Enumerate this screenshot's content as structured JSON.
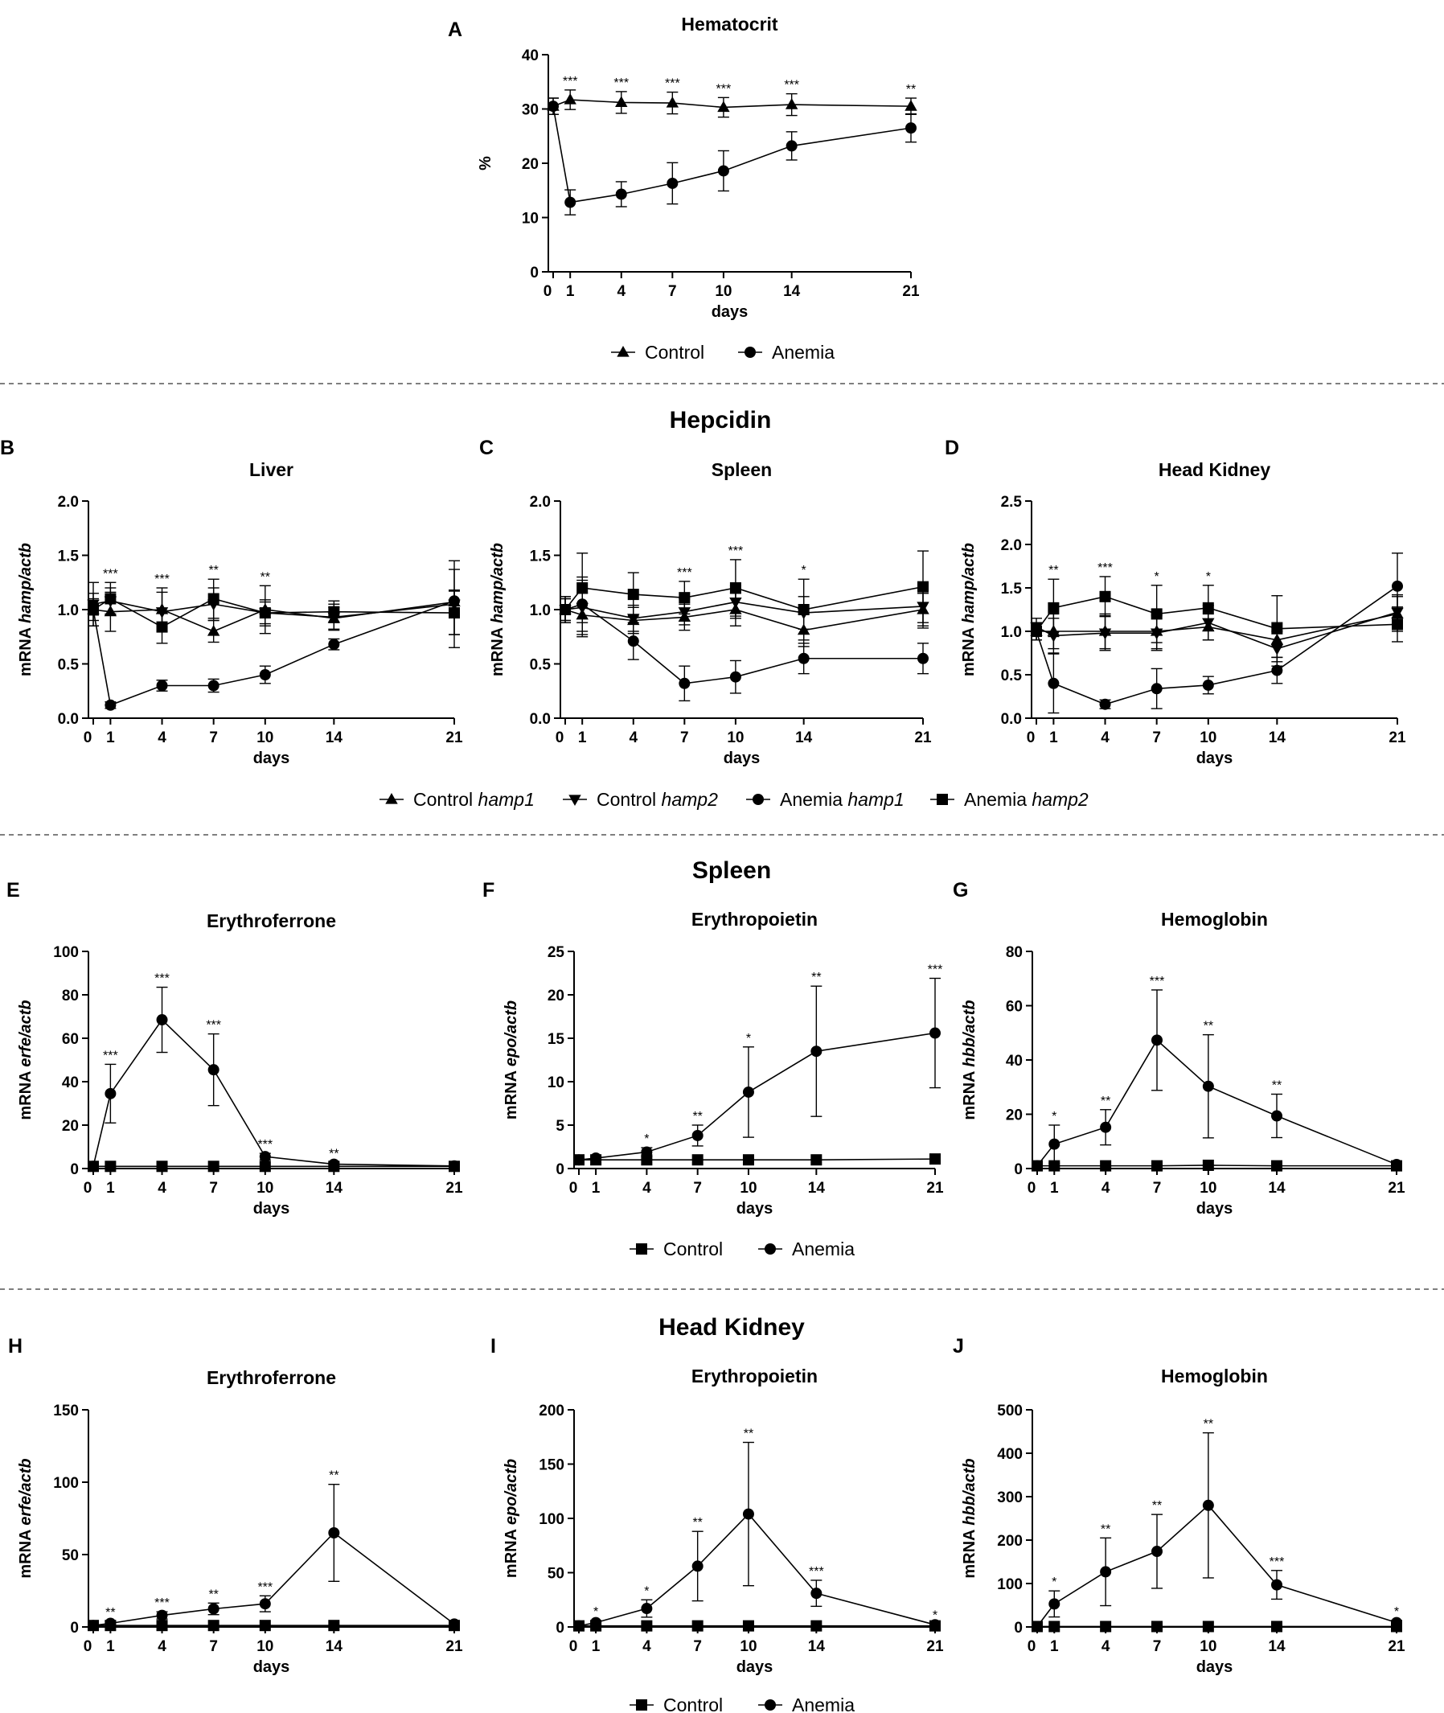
{
  "figure": {
    "sections": {
      "hepcidin": "Hepcidin",
      "spleen": "Spleen",
      "head_kidney": "Head Kidney"
    }
  },
  "legends": {
    "control_anemia_triangle": [
      "Control",
      "Anemia"
    ],
    "control_anemia_square": [
      "Control",
      "Anemia"
    ],
    "hepcidin": [
      {
        "prefix": "Control ",
        "gene": "hamp1"
      },
      {
        "prefix": "Control ",
        "gene": "hamp2"
      },
      {
        "prefix": "Anemia ",
        "gene": "hamp1"
      },
      {
        "prefix": "Anemia ",
        "gene": "hamp2"
      }
    ]
  },
  "chart_data": [
    {
      "id": "A",
      "letter": "A",
      "type": "line",
      "title": "Hematocrit",
      "xlabel": "days",
      "ylabel": "%",
      "ylabel_gene": "",
      "x": [
        0,
        1,
        4,
        7,
        10,
        14,
        21
      ],
      "xlim": [
        0,
        21
      ],
      "ylim": [
        0,
        40
      ],
      "yticks": [
        0,
        10,
        20,
        30,
        40
      ],
      "series": [
        {
          "name": "Control",
          "marker": "triangle",
          "values": [
            30.5,
            31.7,
            31.2,
            31.1,
            30.3,
            30.8,
            30.5
          ],
          "errors": [
            1.5,
            1.8,
            2.0,
            2.0,
            1.8,
            2.0,
            1.5
          ]
        },
        {
          "name": "Anemia",
          "marker": "circle",
          "values": [
            30.5,
            12.8,
            14.3,
            16.3,
            18.6,
            23.2,
            26.5
          ],
          "errors": [
            1.5,
            2.3,
            2.3,
            3.8,
            3.7,
            2.6,
            2.6
          ]
        }
      ],
      "significance": [
        {
          "x": 1,
          "text": "***"
        },
        {
          "x": 4,
          "text": "***"
        },
        {
          "x": 7,
          "text": "***"
        },
        {
          "x": 10,
          "text": "***"
        },
        {
          "x": 14,
          "text": "***"
        },
        {
          "x": 21,
          "text": "**"
        }
      ]
    },
    {
      "id": "B",
      "letter": "B",
      "type": "line",
      "title": "Liver",
      "xlabel": "days",
      "ylabel": "mRNA ",
      "ylabel_gene": "hamp/actb",
      "x": [
        0,
        1,
        4,
        7,
        10,
        14,
        21
      ],
      "xlim": [
        0,
        21
      ],
      "ylim": [
        0,
        2
      ],
      "yticks": [
        0.0,
        0.5,
        1.0,
        1.5,
        2.0
      ],
      "series": [
        {
          "name": "Control hamp1",
          "marker": "triangle",
          "values": [
            1.0,
            0.98,
            1.0,
            0.8,
            1.0,
            0.92,
            1.07
          ],
          "errors": [
            0.15,
            0.18,
            0.2,
            0.1,
            0.22,
            0.1,
            0.3
          ]
        },
        {
          "name": "Control hamp2",
          "marker": "triangle-down",
          "values": [
            1.05,
            1.08,
            0.98,
            1.05,
            0.97,
            0.93,
            1.05
          ],
          "errors": [
            0.2,
            0.12,
            0.18,
            0.15,
            0.12,
            0.12,
            0.4
          ]
        },
        {
          "name": "Anemia hamp1",
          "marker": "circle",
          "values": [
            1.0,
            0.12,
            0.3,
            0.3,
            0.4,
            0.68,
            1.08
          ],
          "errors": [
            0.05,
            0.03,
            0.05,
            0.06,
            0.08,
            0.05,
            0.1
          ]
        },
        {
          "name": "Anemia hamp2",
          "marker": "square",
          "values": [
            1.0,
            1.1,
            0.84,
            1.1,
            0.97,
            0.98,
            0.97
          ],
          "errors": [
            0.1,
            0.15,
            0.15,
            0.18,
            0.1,
            0.1,
            0.2
          ]
        }
      ],
      "significance": [
        {
          "x": 1,
          "text": "***"
        },
        {
          "x": 4,
          "text": "***"
        },
        {
          "x": 7,
          "text": "**"
        },
        {
          "x": 10,
          "text": "**"
        }
      ]
    },
    {
      "id": "C",
      "letter": "C",
      "type": "line",
      "title": "Spleen",
      "xlabel": "days",
      "ylabel": "mRNA ",
      "ylabel_gene": "hamp/actb",
      "x": [
        0,
        1,
        4,
        7,
        10,
        14,
        21
      ],
      "xlim": [
        0,
        21
      ],
      "ylim": [
        0,
        2
      ],
      "yticks": [
        0.0,
        0.5,
        1.0,
        1.5,
        2.0
      ],
      "series": [
        {
          "name": "Control hamp1",
          "marker": "triangle",
          "values": [
            1.0,
            0.95,
            0.9,
            0.93,
            1.0,
            0.81,
            1.0
          ],
          "errors": [
            0.12,
            0.2,
            0.12,
            0.12,
            0.15,
            0.15,
            0.15
          ]
        },
        {
          "name": "Control hamp2",
          "marker": "triangle-down",
          "values": [
            1.0,
            1.02,
            0.92,
            0.98,
            1.07,
            0.97,
            1.03
          ],
          "errors": [
            0.12,
            0.25,
            0.12,
            0.12,
            0.15,
            0.15,
            0.2
          ]
        },
        {
          "name": "Anemia hamp1",
          "marker": "circle",
          "values": [
            1.0,
            1.05,
            0.71,
            0.32,
            0.38,
            0.55,
            0.55
          ],
          "errors": [
            0.1,
            0.25,
            0.17,
            0.16,
            0.15,
            0.14,
            0.14
          ]
        },
        {
          "name": "Anemia hamp2",
          "marker": "square",
          "values": [
            1.0,
            1.2,
            1.14,
            1.11,
            1.2,
            1.0,
            1.21
          ],
          "errors": [
            0.1,
            0.32,
            0.2,
            0.15,
            0.26,
            0.28,
            0.33
          ]
        }
      ],
      "significance": [
        {
          "x": 7,
          "text": "***"
        },
        {
          "x": 10,
          "text": "***"
        },
        {
          "x": 14,
          "text": "*"
        }
      ]
    },
    {
      "id": "D",
      "letter": "D",
      "type": "line",
      "title": "Head Kidney",
      "xlabel": "days",
      "ylabel": "mRNA ",
      "ylabel_gene": "hamp/actb",
      "x": [
        0,
        1,
        4,
        7,
        10,
        14,
        21
      ],
      "xlim": [
        0,
        21
      ],
      "ylim": [
        0,
        2.5
      ],
      "yticks": [
        0.0,
        0.5,
        1.0,
        1.5,
        2.0,
        2.5
      ],
      "series": [
        {
          "name": "Control hamp1",
          "marker": "triangle",
          "values": [
            1.0,
            1.0,
            1.0,
            1.0,
            1.05,
            0.9,
            1.2
          ],
          "errors": [
            0.1,
            0.2,
            0.2,
            0.2,
            0.15,
            0.2,
            0.2
          ]
        },
        {
          "name": "Control hamp2",
          "marker": "triangle-down",
          "values": [
            1.05,
            0.95,
            0.98,
            0.98,
            1.1,
            0.8,
            1.22
          ],
          "errors": [
            0.1,
            0.2,
            0.2,
            0.2,
            0.2,
            0.2,
            0.2
          ]
        },
        {
          "name": "Anemia hamp1",
          "marker": "circle",
          "values": [
            1.0,
            0.4,
            0.16,
            0.34,
            0.38,
            0.55,
            1.52
          ],
          "errors": [
            0.1,
            0.34,
            0.05,
            0.23,
            0.1,
            0.15,
            0.38
          ]
        },
        {
          "name": "Anemia hamp2",
          "marker": "square",
          "values": [
            1.0,
            1.27,
            1.4,
            1.2,
            1.27,
            1.03,
            1.08
          ],
          "errors": [
            0.1,
            0.33,
            0.23,
            0.33,
            0.26,
            0.38,
            0.2
          ]
        }
      ],
      "significance": [
        {
          "x": 1,
          "text": "**"
        },
        {
          "x": 4,
          "text": "***"
        },
        {
          "x": 7,
          "text": "*"
        },
        {
          "x": 10,
          "text": "*"
        }
      ]
    },
    {
      "id": "E",
      "letter": "E",
      "type": "line",
      "title": "Erythroferrone",
      "xlabel": "days",
      "ylabel": "mRNA ",
      "ylabel_gene": "erfe/actb",
      "x": [
        0,
        1,
        4,
        7,
        10,
        14,
        21
      ],
      "xlim": [
        0,
        21
      ],
      "ylim": [
        0,
        100
      ],
      "yticks": [
        0,
        20,
        40,
        60,
        80,
        100
      ],
      "series": [
        {
          "name": "Control",
          "marker": "square",
          "values": [
            1,
            1,
            1,
            1,
            1,
            1,
            1
          ],
          "errors": [
            0,
            0,
            0,
            0,
            0,
            0,
            0
          ]
        },
        {
          "name": "Anemia",
          "marker": "circle",
          "values": [
            1,
            34.5,
            68.5,
            45.5,
            5.5,
            2,
            1.2
          ],
          "errors": [
            0,
            13.5,
            15,
            16.5,
            1.5,
            0.8,
            0.3
          ]
        }
      ],
      "significance": [
        {
          "x": 1,
          "text": "***"
        },
        {
          "x": 4,
          "text": "***"
        },
        {
          "x": 7,
          "text": "***"
        },
        {
          "x": 10,
          "text": "***"
        },
        {
          "x": 14,
          "text": "**"
        }
      ]
    },
    {
      "id": "F",
      "letter": "F",
      "type": "line",
      "title": "Erythropoietin",
      "xlabel": "days",
      "ylabel": "mRNA ",
      "ylabel_gene": "epo/actb",
      "x": [
        0,
        1,
        4,
        7,
        10,
        14,
        21
      ],
      "xlim": [
        0,
        21
      ],
      "ylim": [
        0,
        25
      ],
      "yticks": [
        0,
        5,
        10,
        15,
        20,
        25
      ],
      "series": [
        {
          "name": "Control",
          "marker": "square",
          "values": [
            1,
            1,
            1,
            1,
            1,
            1,
            1.1
          ],
          "errors": [
            0,
            0,
            0,
            0,
            0,
            0,
            0
          ]
        },
        {
          "name": "Anemia",
          "marker": "circle",
          "values": [
            1,
            1.2,
            1.9,
            3.8,
            8.8,
            13.5,
            15.6
          ],
          "errors": [
            0,
            0.2,
            0.5,
            1.2,
            5.2,
            7.5,
            6.3
          ]
        }
      ],
      "significance": [
        {
          "x": 4,
          "text": "*"
        },
        {
          "x": 7,
          "text": "**"
        },
        {
          "x": 10,
          "text": "*"
        },
        {
          "x": 14,
          "text": "**"
        },
        {
          "x": 21,
          "text": "***"
        }
      ]
    },
    {
      "id": "G",
      "letter": "G",
      "type": "line",
      "title": "Hemoglobin",
      "xlabel": "days",
      "ylabel": "mRNA ",
      "ylabel_gene": "hbb/actb",
      "x": [
        0,
        1,
        4,
        7,
        10,
        14,
        21
      ],
      "xlim": [
        0,
        21
      ],
      "ylim": [
        0,
        80
      ],
      "yticks": [
        0,
        20,
        40,
        60,
        80
      ],
      "series": [
        {
          "name": "Control",
          "marker": "square",
          "values": [
            1,
            1,
            1,
            1,
            1.2,
            1,
            1
          ],
          "errors": [
            0,
            0,
            0,
            0,
            0,
            0,
            0
          ]
        },
        {
          "name": "Anemia",
          "marker": "circle",
          "values": [
            1,
            9,
            15.2,
            47.3,
            30.3,
            19.4,
            1.5
          ],
          "errors": [
            0,
            7,
            6.5,
            18.5,
            19,
            8,
            0.3
          ]
        }
      ],
      "significance": [
        {
          "x": 1,
          "text": "*"
        },
        {
          "x": 4,
          "text": "**"
        },
        {
          "x": 7,
          "text": "***"
        },
        {
          "x": 10,
          "text": "**"
        },
        {
          "x": 14,
          "text": "**"
        }
      ]
    },
    {
      "id": "H",
      "letter": "H",
      "type": "line",
      "title": "Erythroferrone",
      "xlabel": "days",
      "ylabel": "mRNA ",
      "ylabel_gene": "erfe/actb",
      "x": [
        0,
        1,
        4,
        7,
        10,
        14,
        21
      ],
      "xlim": [
        0,
        21
      ],
      "ylim": [
        0,
        150
      ],
      "yticks": [
        0,
        50,
        100,
        150
      ],
      "series": [
        {
          "name": "Control",
          "marker": "square",
          "values": [
            1,
            1,
            1,
            1,
            1,
            1,
            1
          ],
          "errors": [
            0,
            0,
            0,
            0,
            0,
            0,
            0
          ]
        },
        {
          "name": "Anemia",
          "marker": "circle",
          "values": [
            1,
            2.5,
            8,
            12.5,
            16,
            65,
            2
          ],
          "errors": [
            0,
            1.5,
            2.5,
            4,
            5.5,
            33.5,
            0.5
          ]
        }
      ],
      "significance": [
        {
          "x": 1,
          "text": "**"
        },
        {
          "x": 4,
          "text": "***"
        },
        {
          "x": 7,
          "text": "**"
        },
        {
          "x": 10,
          "text": "***"
        },
        {
          "x": 14,
          "text": "**"
        }
      ]
    },
    {
      "id": "I",
      "letter": "I",
      "type": "line",
      "title": "Erythropoietin",
      "xlabel": "days",
      "ylabel": "mRNA ",
      "ylabel_gene": "epo/actb",
      "x": [
        0,
        1,
        4,
        7,
        10,
        14,
        21
      ],
      "xlim": [
        0,
        21
      ],
      "ylim": [
        0,
        200
      ],
      "yticks": [
        0,
        50,
        100,
        150,
        200
      ],
      "series": [
        {
          "name": "Control",
          "marker": "square",
          "values": [
            1,
            1,
            1,
            1,
            1,
            1,
            1
          ],
          "errors": [
            0,
            0,
            0,
            0,
            0,
            0,
            0
          ]
        },
        {
          "name": "Anemia",
          "marker": "circle",
          "values": [
            1,
            4,
            17,
            56,
            104,
            31,
            2
          ],
          "errors": [
            0,
            2,
            8,
            32,
            66,
            12,
            0.5
          ]
        }
      ],
      "significance": [
        {
          "x": 1,
          "text": "*"
        },
        {
          "x": 4,
          "text": "*"
        },
        {
          "x": 7,
          "text": "**"
        },
        {
          "x": 10,
          "text": "**"
        },
        {
          "x": 14,
          "text": "***"
        },
        {
          "x": 21,
          "text": "*"
        }
      ]
    },
    {
      "id": "J",
      "letter": "J",
      "type": "line",
      "title": "Hemoglobin",
      "xlabel": "days",
      "ylabel": "mRNA ",
      "ylabel_gene": "hbb/actb",
      "x": [
        0,
        1,
        4,
        7,
        10,
        14,
        21
      ],
      "xlim": [
        0,
        21
      ],
      "ylim": [
        0,
        500
      ],
      "yticks": [
        0,
        100,
        200,
        300,
        400,
        500
      ],
      "series": [
        {
          "name": "Control",
          "marker": "square",
          "values": [
            1,
            1,
            1,
            1,
            1,
            1,
            1
          ],
          "errors": [
            0,
            0,
            0,
            0,
            0,
            0,
            0
          ]
        },
        {
          "name": "Anemia",
          "marker": "circle",
          "values": [
            1,
            53,
            127,
            174,
            280,
            97,
            10
          ],
          "errors": [
            0,
            30,
            78,
            85,
            167,
            33,
            5
          ]
        }
      ],
      "significance": [
        {
          "x": 1,
          "text": "*"
        },
        {
          "x": 4,
          "text": "**"
        },
        {
          "x": 7,
          "text": "**"
        },
        {
          "x": 10,
          "text": "**"
        },
        {
          "x": 14,
          "text": "***"
        },
        {
          "x": 21,
          "text": "*"
        }
      ]
    }
  ]
}
